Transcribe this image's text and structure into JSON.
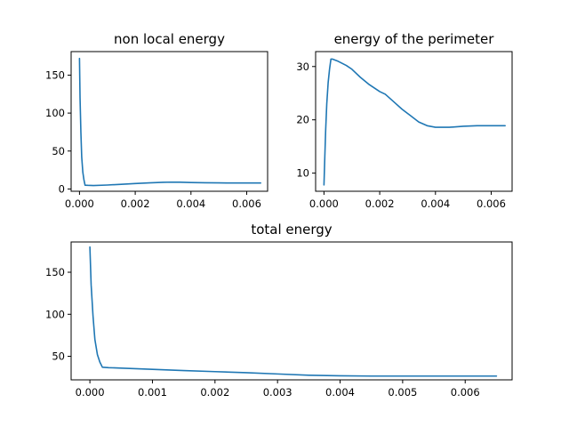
{
  "chart_data": [
    {
      "type": "line",
      "title": "non local energy",
      "xlabel": "",
      "ylabel": "",
      "xlim": [
        -0.0003,
        0.00675
      ],
      "ylim": [
        -3,
        181
      ],
      "xticks": [
        0.0,
        0.002,
        0.004,
        0.006
      ],
      "xtick_labels": [
        "0.000",
        "0.002",
        "0.004",
        "0.006"
      ],
      "yticks": [
        0,
        50,
        100,
        150
      ],
      "ytick_labels": [
        "0",
        "50",
        "100",
        "150"
      ],
      "grid": false,
      "color": "#1f77b4",
      "x": [
        0.0,
        2e-05,
        5e-05,
        8e-05,
        0.00012,
        0.00016,
        0.0002,
        0.0003,
        0.0005,
        0.001,
        0.0015,
        0.002,
        0.0025,
        0.003,
        0.0033,
        0.0036,
        0.004,
        0.0045,
        0.005,
        0.0055,
        0.006,
        0.0065
      ],
      "y": [
        172,
        120,
        75,
        42,
        22,
        12,
        5,
        4.8,
        4.6,
        5.2,
        6.2,
        7.2,
        8.0,
        8.8,
        9.0,
        8.9,
        8.5,
        8.2,
        8.0,
        7.9,
        7.9,
        7.9
      ]
    },
    {
      "type": "line",
      "title": "energy of the perimeter",
      "xlabel": "",
      "ylabel": "",
      "xlim": [
        -0.0003,
        0.00675
      ],
      "ylim": [
        6.6,
        32.8
      ],
      "xticks": [
        0.0,
        0.002,
        0.004,
        0.006
      ],
      "xtick_labels": [
        "0.000",
        "0.002",
        "0.004",
        "0.006"
      ],
      "yticks": [
        10,
        20,
        30
      ],
      "ytick_labels": [
        "10",
        "20",
        "30"
      ],
      "grid": false,
      "color": "#1f77b4",
      "x": [
        0.0,
        3e-05,
        6e-05,
        0.0001,
        0.00015,
        0.0002,
        0.00025,
        0.0003,
        0.0005,
        0.0008,
        0.001,
        0.0013,
        0.0016,
        0.002,
        0.0022,
        0.0025,
        0.0028,
        0.0031,
        0.0034,
        0.0037,
        0.004,
        0.0045,
        0.005,
        0.0055,
        0.006,
        0.0065
      ],
      "y": [
        7.8,
        13,
        18,
        23,
        27,
        29.5,
        31.4,
        31.4,
        31.0,
        30.2,
        29.5,
        28.0,
        26.7,
        25.3,
        24.8,
        23.4,
        22.0,
        20.8,
        19.6,
        18.9,
        18.6,
        18.6,
        18.8,
        18.9,
        18.9,
        18.9
      ]
    },
    {
      "type": "line",
      "title": "total energy",
      "xlabel": "",
      "ylabel": "",
      "xlim": [
        -0.0003,
        0.00675
      ],
      "ylim": [
        22,
        186
      ],
      "xticks": [
        0.0,
        0.001,
        0.002,
        0.003,
        0.004,
        0.005,
        0.006
      ],
      "xtick_labels": [
        "0.000",
        "0.001",
        "0.002",
        "0.003",
        "0.004",
        "0.005",
        "0.006"
      ],
      "yticks": [
        50,
        100,
        150
      ],
      "ytick_labels": [
        "50",
        "100",
        "150"
      ],
      "grid": false,
      "color": "#1f77b4",
      "x": [
        0.0,
        2e-05,
        5e-05,
        8e-05,
        0.00012,
        0.00016,
        0.0002,
        0.0003,
        0.0005,
        0.001,
        0.0015,
        0.002,
        0.0025,
        0.003,
        0.0035,
        0.004,
        0.0045,
        0.005,
        0.0055,
        0.006,
        0.0065
      ],
      "y": [
        180,
        135,
        98,
        70,
        52,
        43,
        37,
        36.5,
        36,
        34.5,
        33,
        31.8,
        30.5,
        29,
        27.5,
        26.8,
        26.5,
        26.5,
        26.5,
        26.5,
        26.5
      ]
    }
  ]
}
